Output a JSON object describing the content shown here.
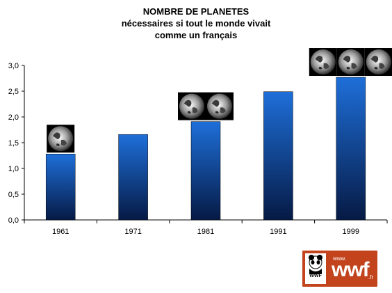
{
  "chart_data": {
    "type": "bar",
    "title": "NOMBRE DE PLANETES",
    "subtitle_lines": [
      "nécessaires si tout le monde vivait",
      "comme un français"
    ],
    "xlabel": "",
    "ylabel": "",
    "categories": [
      "1961",
      "1971",
      "1981",
      "1991",
      "1999"
    ],
    "values": [
      1.28,
      1.66,
      1.91,
      2.49,
      2.77
    ],
    "planet_icons": [
      1,
      0,
      2,
      0,
      3
    ],
    "ylim": [
      0,
      3
    ],
    "y_ticks": [
      "0,0",
      "0,5",
      "1,0",
      "1,5",
      "2,0",
      "2,5",
      "3,0"
    ],
    "y_tick_values": [
      0,
      0.5,
      1.0,
      1.5,
      2.0,
      2.5,
      3.0
    ],
    "grid": false,
    "legend": "none",
    "bar_color_top": "#1e6fd9",
    "bar_color_bottom": "#061a45"
  },
  "logo": {
    "www": "www.",
    "name": "wwf",
    "tld": ".fr",
    "panda_label": "WWF",
    "color": "#c2431c"
  }
}
